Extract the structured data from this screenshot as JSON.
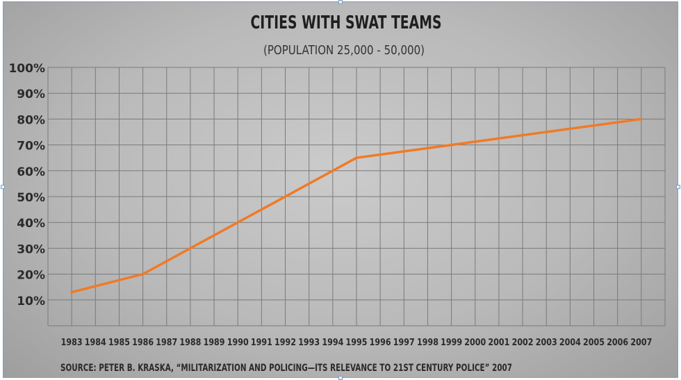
{
  "chart_data": {
    "type": "line",
    "title": "CITIES WITH SWAT TEAMS",
    "subtitle": "(POPULATION 25,000 - 50,000)",
    "x": [
      1983,
      1984,
      1985,
      1986,
      1987,
      1988,
      1989,
      1990,
      1991,
      1992,
      1993,
      1994,
      1995,
      1996,
      1997,
      1998,
      1999,
      2000,
      2001,
      2002,
      2003,
      2004,
      2005,
      2006,
      2007
    ],
    "x_tick_labels": [
      "1983",
      "1984",
      "1985",
      "1986",
      "1987",
      "1988",
      "1989",
      "1990",
      "1991",
      "1992",
      "1993",
      "1994",
      "1995",
      "1996",
      "1997",
      "1998",
      "1999",
      "2000",
      "2001",
      "2002",
      "2003",
      "2004",
      "2005",
      "2006",
      "2007"
    ],
    "y_tick_labels": [
      "10%",
      "20%",
      "30%",
      "40%",
      "50%",
      "60%",
      "70%",
      "80%",
      "90%",
      "100%"
    ],
    "ylim": [
      0,
      100
    ],
    "grid": true,
    "series": [
      {
        "points": [
          {
            "x": 1983,
            "y": 13
          },
          {
            "x": 1986,
            "y": 20
          },
          {
            "x": 1995,
            "y": 65
          },
          {
            "x": 1999,
            "y": 70
          },
          {
            "x": 2007,
            "y": 80
          }
        ]
      }
    ],
    "source": "SOURCE: PETER B. KRASKA, “MILITARIZATION AND POLICING—ITS RELEVANCE TO 21ST CENTURY POLICE” 2007",
    "colors": {
      "line": "#f07a26",
      "grid": "#7a7a7a",
      "text": "#2a2a2a"
    }
  }
}
